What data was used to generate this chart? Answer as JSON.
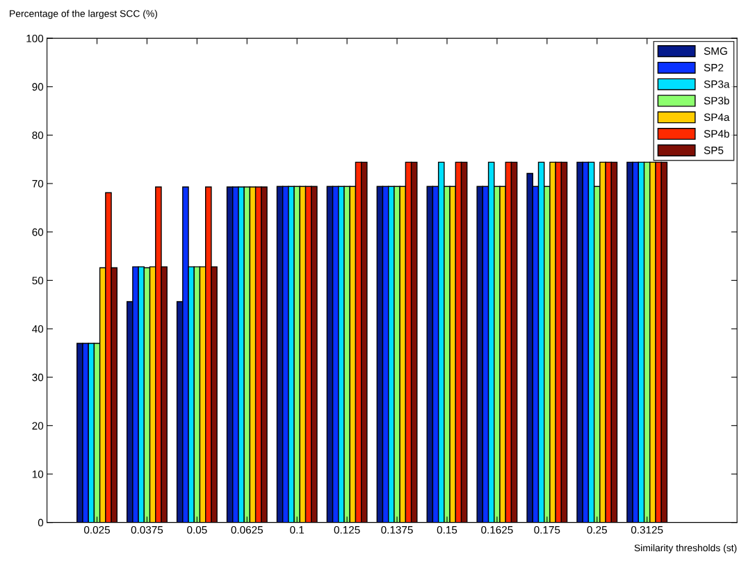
{
  "chart_data": {
    "type": "bar",
    "xlabel": "Similarity thresholds (st)",
    "ylabel": "Percentage of the largest SCC (%)",
    "categories": [
      "0.025",
      "0.0375",
      "0.05",
      "0.0625",
      "0.1",
      "0.125",
      "0.1375",
      "0.15",
      "0.1625",
      "0.175",
      "0.25",
      "0.3125"
    ],
    "series": [
      {
        "name": "SMG",
        "color": "#051a8c",
        "values": [
          37,
          45.6,
          45.6,
          69.3,
          69.4,
          69.4,
          69.4,
          69.4,
          69.4,
          72.1,
          74.4,
          74.4
        ]
      },
      {
        "name": "SP2",
        "color": "#0a32ff",
        "values": [
          37,
          52.8,
          69.3,
          69.3,
          69.4,
          69.4,
          69.4,
          69.4,
          69.4,
          69.4,
          74.4,
          74.4
        ]
      },
      {
        "name": "SP3a",
        "color": "#00e0ff",
        "values": [
          37,
          52.8,
          52.8,
          69.3,
          69.4,
          69.4,
          69.4,
          74.4,
          74.4,
          74.4,
          74.4,
          74.4
        ]
      },
      {
        "name": "SP3b",
        "color": "#8cff6e",
        "values": [
          37,
          52.6,
          52.8,
          69.3,
          69.4,
          69.4,
          69.4,
          69.4,
          69.4,
          69.4,
          69.4,
          74.4
        ]
      },
      {
        "name": "SP4a",
        "color": "#ffcc00",
        "values": [
          52.6,
          52.8,
          52.8,
          69.3,
          69.4,
          69.4,
          69.4,
          69.4,
          69.4,
          74.4,
          74.4,
          74.4
        ]
      },
      {
        "name": "SP4b",
        "color": "#ff2a00",
        "values": [
          68.1,
          69.3,
          69.3,
          69.3,
          69.4,
          74.4,
          74.4,
          74.4,
          74.4,
          74.4,
          74.4,
          74.4
        ]
      },
      {
        "name": "SP5",
        "color": "#7f0f05",
        "values": [
          52.6,
          52.8,
          52.8,
          69.3,
          69.4,
          74.4,
          74.4,
          74.4,
          74.4,
          74.4,
          74.4,
          74.4
        ]
      }
    ],
    "ylim": [
      0,
      100
    ],
    "yticks": [
      0,
      10,
      20,
      30,
      40,
      50,
      60,
      70,
      80,
      90,
      100
    ],
    "grid": false,
    "legend": "top right"
  }
}
